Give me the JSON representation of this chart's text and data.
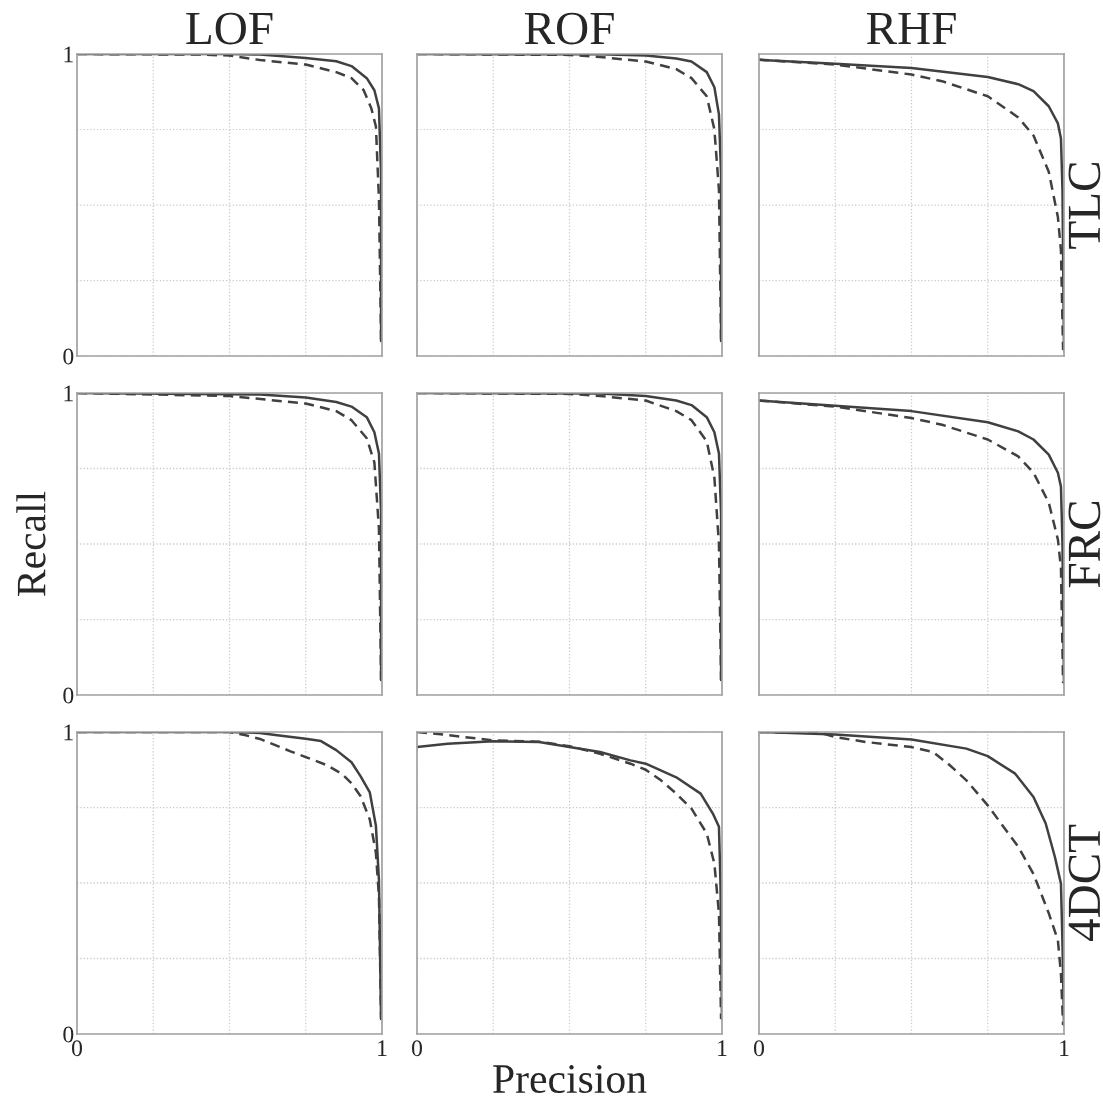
{
  "chart_data": [
    {
      "type": "line",
      "title": "LOF",
      "xlim": [
        0,
        1
      ],
      "ylim": [
        0,
        1
      ],
      "xticks": [
        0,
        {
          "value": 0.25,
          "label": null
        },
        {
          "value": 0.5,
          "label": null
        },
        {
          "value": 0.75,
          "label": null
        },
        1
      ],
      "yticks": [
        0,
        {
          "value": 0.25,
          "label": null
        },
        {
          "value": 0.5,
          "label": null
        },
        {
          "value": 0.75,
          "label": null
        },
        1
      ],
      "tick_labels": "y",
      "grid": true,
      "series": [
        {
          "color": "#404040",
          "line_style": "solid",
          "x": [
            0,
            0.5,
            0.6,
            0.75,
            0.85,
            0.9,
            0.95,
            0.975,
            0.99,
            0.997,
            0.997
          ],
          "values": [
            1.0,
            1.0,
            0.998,
            0.987,
            0.976,
            0.96,
            0.92,
            0.88,
            0.82,
            0.6,
            0.05
          ]
        },
        {
          "color": "#404040",
          "line_style": "dashed",
          "x": [
            0,
            0.4,
            0.5,
            0.6,
            0.75,
            0.85,
            0.9,
            0.94,
            0.965,
            0.98,
            0.99,
            0.997
          ],
          "values": [
            1.0,
            0.998,
            0.995,
            0.98,
            0.965,
            0.94,
            0.92,
            0.88,
            0.82,
            0.76,
            0.52,
            0.05
          ]
        }
      ]
    },
    {
      "type": "line",
      "title": "ROF",
      "xlim": [
        0,
        1
      ],
      "ylim": [
        0,
        1
      ],
      "xticks": [
        0,
        {
          "value": 0.25,
          "label": null
        },
        {
          "value": 0.5,
          "label": null
        },
        {
          "value": 0.75,
          "label": null
        },
        1
      ],
      "yticks": [
        0,
        {
          "value": 0.25,
          "label": null
        },
        {
          "value": 0.5,
          "label": null
        },
        {
          "value": 0.75,
          "label": null
        },
        1
      ],
      "tick_labels": false,
      "grid": true,
      "series": [
        {
          "color": "#404040",
          "line_style": "solid",
          "x": [
            0,
            0.6,
            0.75,
            0.85,
            0.9,
            0.95,
            0.975,
            0.99,
            0.997,
            0.997
          ],
          "values": [
            1.0,
            0.999,
            0.995,
            0.985,
            0.975,
            0.94,
            0.89,
            0.8,
            0.6,
            0.05
          ]
        },
        {
          "color": "#404040",
          "line_style": "dashed",
          "x": [
            0,
            0.5,
            0.6,
            0.75,
            0.85,
            0.9,
            0.95,
            0.975,
            0.99,
            0.997
          ],
          "values": [
            1.0,
            0.997,
            0.99,
            0.975,
            0.95,
            0.92,
            0.86,
            0.75,
            0.55,
            0.05
          ]
        }
      ]
    },
    {
      "type": "line",
      "title": "RHF",
      "annotations": [
        "TLC"
      ],
      "xlim": [
        0,
        1
      ],
      "ylim": [
        0,
        1
      ],
      "xticks": [
        0,
        {
          "value": 0.25,
          "label": null
        },
        {
          "value": 0.5,
          "label": null
        },
        {
          "value": 0.75,
          "label": null
        },
        1
      ],
      "yticks": [
        0,
        {
          "value": 0.25,
          "label": null
        },
        {
          "value": 0.5,
          "label": null
        },
        {
          "value": 0.75,
          "label": null
        },
        1
      ],
      "tick_labels": false,
      "grid": true,
      "series": [
        {
          "color": "#404040",
          "line_style": "solid",
          "x": [
            0,
            0.25,
            0.5,
            0.75,
            0.85,
            0.9,
            0.95,
            0.98,
            0.99,
            0.995,
            1.0
          ],
          "values": [
            0.981,
            0.968,
            0.954,
            0.924,
            0.9,
            0.877,
            0.827,
            0.77,
            0.72,
            0.55,
            0.02
          ]
        },
        {
          "color": "#404040",
          "line_style": "dashed",
          "x": [
            0,
            0.25,
            0.5,
            0.6,
            0.75,
            0.85,
            0.9,
            0.95,
            0.98,
            0.99,
            0.997
          ],
          "values": [
            0.981,
            0.965,
            0.932,
            0.91,
            0.86,
            0.79,
            0.73,
            0.61,
            0.46,
            0.35,
            0.02
          ]
        }
      ]
    },
    {
      "type": "line",
      "ylabel": "Recall",
      "xlim": [
        0,
        1
      ],
      "ylim": [
        0,
        1
      ],
      "xticks": [
        0,
        {
          "value": 0.25,
          "label": null
        },
        {
          "value": 0.5,
          "label": null
        },
        {
          "value": 0.75,
          "label": null
        },
        1
      ],
      "yticks": [
        0,
        {
          "value": 0.25,
          "label": null
        },
        {
          "value": 0.5,
          "label": null
        },
        {
          "value": 0.75,
          "label": null
        },
        1
      ],
      "tick_labels": "y",
      "grid": true,
      "series": [
        {
          "color": "#404040",
          "line_style": "solid",
          "x": [
            0,
            0.6,
            0.75,
            0.85,
            0.9,
            0.95,
            0.975,
            0.99,
            0.997,
            0.997
          ],
          "values": [
            1.0,
            0.995,
            0.985,
            0.97,
            0.955,
            0.92,
            0.87,
            0.8,
            0.6,
            0.05
          ]
        },
        {
          "color": "#404040",
          "line_style": "dashed",
          "x": [
            0,
            0.5,
            0.75,
            0.85,
            0.9,
            0.95,
            0.975,
            0.99,
            0.997
          ],
          "values": [
            1.0,
            0.99,
            0.965,
            0.94,
            0.91,
            0.85,
            0.77,
            0.55,
            0.05
          ]
        }
      ]
    },
    {
      "type": "line",
      "xlim": [
        0,
        1
      ],
      "ylim": [
        0,
        1
      ],
      "xticks": [
        0,
        {
          "value": 0.25,
          "label": null
        },
        {
          "value": 0.5,
          "label": null
        },
        {
          "value": 0.75,
          "label": null
        },
        1
      ],
      "yticks": [
        0,
        {
          "value": 0.25,
          "label": null
        },
        {
          "value": 0.5,
          "label": null
        },
        {
          "value": 0.75,
          "label": null
        },
        1
      ],
      "tick_labels": false,
      "grid": true,
      "series": [
        {
          "color": "#404040",
          "line_style": "solid",
          "x": [
            0,
            0.6,
            0.75,
            0.85,
            0.9,
            0.95,
            0.975,
            0.99,
            0.997,
            0.997
          ],
          "values": [
            1.0,
            0.998,
            0.99,
            0.975,
            0.96,
            0.92,
            0.87,
            0.8,
            0.6,
            0.05
          ]
        },
        {
          "color": "#404040",
          "line_style": "dashed",
          "x": [
            0,
            0.5,
            0.6,
            0.75,
            0.85,
            0.9,
            0.95,
            0.975,
            0.99,
            0.997
          ],
          "values": [
            1.0,
            0.997,
            0.99,
            0.975,
            0.94,
            0.91,
            0.84,
            0.72,
            0.5,
            0.05
          ]
        }
      ]
    },
    {
      "type": "line",
      "annotations": [
        "FRC"
      ],
      "xlim": [
        0,
        1
      ],
      "ylim": [
        0,
        1
      ],
      "xticks": [
        0,
        {
          "value": 0.25,
          "label": null
        },
        {
          "value": 0.5,
          "label": null
        },
        {
          "value": 0.75,
          "label": null
        },
        1
      ],
      "yticks": [
        0,
        {
          "value": 0.25,
          "label": null
        },
        {
          "value": 0.5,
          "label": null
        },
        {
          "value": 0.75,
          "label": null
        },
        1
      ],
      "tick_labels": false,
      "grid": true,
      "series": [
        {
          "color": "#404040",
          "line_style": "solid",
          "x": [
            0,
            0.25,
            0.5,
            0.75,
            0.85,
            0.9,
            0.95,
            0.98,
            0.99,
            0.995,
            1.0
          ],
          "values": [
            0.975,
            0.958,
            0.94,
            0.903,
            0.873,
            0.846,
            0.796,
            0.736,
            0.69,
            0.5,
            0.04
          ]
        },
        {
          "color": "#404040",
          "line_style": "dashed",
          "x": [
            0,
            0.25,
            0.5,
            0.6,
            0.75,
            0.85,
            0.9,
            0.95,
            0.98,
            0.99,
            0.997
          ],
          "values": [
            0.975,
            0.955,
            0.917,
            0.895,
            0.846,
            0.79,
            0.736,
            0.637,
            0.515,
            0.42,
            0.04
          ]
        }
      ]
    },
    {
      "type": "line",
      "xlim": [
        0,
        1
      ],
      "ylim": [
        0,
        1
      ],
      "xticks": [
        0,
        {
          "value": 0.25,
          "label": null
        },
        {
          "value": 0.5,
          "label": null
        },
        {
          "value": 0.75,
          "label": null
        },
        1
      ],
      "yticks": [
        0,
        {
          "value": 0.25,
          "label": null
        },
        {
          "value": 0.5,
          "label": null
        },
        {
          "value": 0.75,
          "label": null
        },
        1
      ],
      "grid": true,
      "series": [
        {
          "color": "#404040",
          "line_style": "solid",
          "x": [
            0,
            0.5,
            0.6,
            0.65,
            0.75,
            0.8,
            0.85,
            0.9,
            0.93,
            0.96,
            0.98,
            0.99,
            0.997
          ],
          "values": [
            1.0,
            1.0,
            0.997,
            0.99,
            0.978,
            0.97,
            0.94,
            0.9,
            0.853,
            0.8,
            0.69,
            0.51,
            0.05
          ]
        },
        {
          "color": "#404040",
          "line_style": "dashed",
          "x": [
            0,
            0.5,
            0.55,
            0.6,
            0.7,
            0.75,
            0.82,
            0.87,
            0.9,
            0.93,
            0.96,
            0.98,
            0.99,
            0.997
          ],
          "values": [
            1.0,
            1.0,
            0.99,
            0.977,
            0.936,
            0.917,
            0.89,
            0.86,
            0.83,
            0.787,
            0.71,
            0.6,
            0.455,
            0.05
          ]
        }
      ]
    },
    {
      "type": "line",
      "xlabel": "Precision",
      "xlim": [
        0,
        1
      ],
      "ylim": [
        0,
        1
      ],
      "xticks": [
        0,
        {
          "value": 0.25,
          "label": null
        },
        {
          "value": 0.5,
          "label": null
        },
        {
          "value": 0.75,
          "label": null
        },
        1
      ],
      "yticks": [
        0,
        {
          "value": 0.25,
          "label": null
        },
        {
          "value": 0.5,
          "label": null
        },
        {
          "value": 0.75,
          "label": null
        },
        1
      ],
      "tick_labels": "x",
      "grid": true,
      "series": [
        {
          "color": "#404040",
          "line_style": "solid",
          "x": [
            0,
            0.1,
            0.25,
            0.4,
            0.5,
            0.6,
            0.7,
            0.75,
            0.85,
            0.93,
            0.97,
            0.99,
            0.995,
            1.0
          ],
          "values": [
            0.95,
            0.961,
            0.969,
            0.967,
            0.95,
            0.934,
            0.906,
            0.895,
            0.85,
            0.796,
            0.73,
            0.686,
            0.5,
            0.05
          ]
        },
        {
          "color": "#404040",
          "line_style": "dashed",
          "x": [
            0,
            0.1,
            0.25,
            0.4,
            0.5,
            0.6,
            0.7,
            0.75,
            0.8,
            0.85,
            0.9,
            0.95,
            0.975,
            0.99,
            0.997
          ],
          "values": [
            1.0,
            0.99,
            0.972,
            0.968,
            0.953,
            0.928,
            0.895,
            0.875,
            0.84,
            0.796,
            0.746,
            0.664,
            0.564,
            0.4,
            0.05
          ]
        }
      ]
    },
    {
      "type": "line",
      "annotations": [
        "4DCT"
      ],
      "xlim": [
        0,
        1
      ],
      "ylim": [
        0,
        1
      ],
      "xticks": [
        0,
        {
          "value": 0.25,
          "label": null
        },
        {
          "value": 0.5,
          "label": null
        },
        {
          "value": 0.75,
          "label": null
        },
        1
      ],
      "yticks": [
        0,
        {
          "value": 0.25,
          "label": null
        },
        {
          "value": 0.5,
          "label": null
        },
        {
          "value": 0.75,
          "label": null
        },
        1
      ],
      "tick_labels": "x",
      "grid": true,
      "series": [
        {
          "color": "#404040",
          "line_style": "solid",
          "x": [
            0,
            0.25,
            0.5,
            0.68,
            0.75,
            0.84,
            0.9,
            0.94,
            0.97,
            0.99,
            0.995,
            1.0
          ],
          "values": [
            1.0,
            0.992,
            0.975,
            0.945,
            0.92,
            0.862,
            0.785,
            0.697,
            0.587,
            0.498,
            0.3,
            0.03
          ]
        },
        {
          "color": "#404040",
          "line_style": "dashed",
          "x": [
            0,
            0.2,
            0.25,
            0.35,
            0.5,
            0.57,
            0.62,
            0.68,
            0.75,
            0.85,
            0.9,
            0.95,
            0.98,
            0.99,
            0.997
          ],
          "values": [
            1.0,
            0.998,
            0.983,
            0.967,
            0.95,
            0.934,
            0.895,
            0.84,
            0.757,
            0.62,
            0.53,
            0.4,
            0.31,
            0.2,
            0.03
          ]
        }
      ]
    }
  ]
}
